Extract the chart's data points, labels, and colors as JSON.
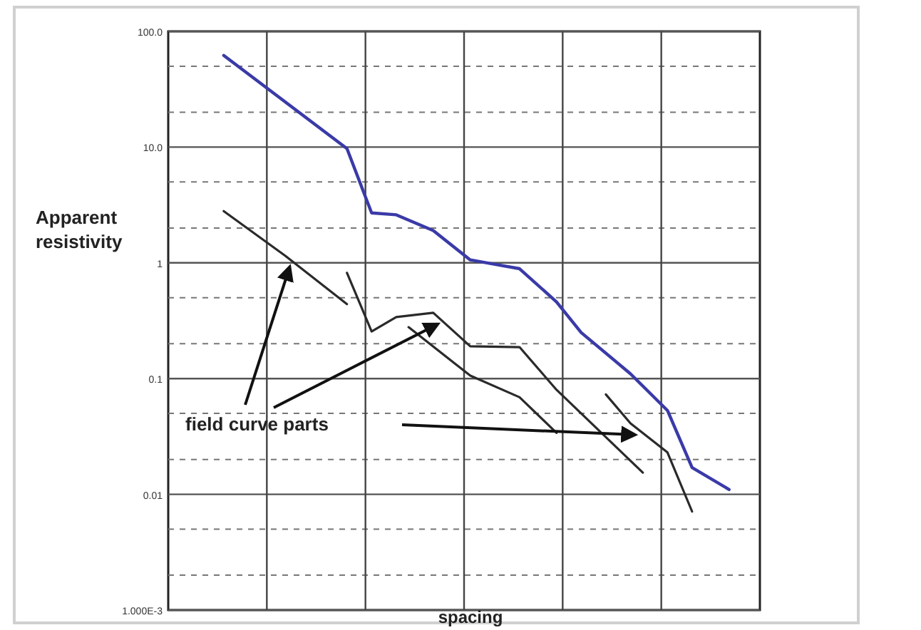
{
  "chart_data": {
    "type": "line",
    "xlabel": "spacing",
    "ylabel": "Apparent resistivity",
    "log": "y",
    "grid": true,
    "marker": "none",
    "line_style": "solid",
    "tick_labels": "y",
    "categories": [
      null,
      null,
      null,
      null,
      null,
      null,
      null,
      null,
      null,
      null,
      null,
      null,
      null,
      null,
      null,
      null,
      null,
      null,
      null,
      null,
      null,
      null,
      null,
      null,
      null,
      null,
      null,
      null,
      null,
      null,
      null,
      null,
      null,
      null,
      null,
      null,
      null,
      null,
      null,
      null,
      null,
      null,
      null,
      null,
      null,
      null,
      null,
      null
    ],
    "ylim": [
      0.001,
      100
    ],
    "yticks": [
      {
        "value": 100,
        "label": "100.0"
      },
      {
        "value": 10,
        "label": "10.0"
      },
      1,
      0.1,
      0.01,
      {
        "value": 0.001,
        "label": "1.000E-3"
      }
    ],
    "annotations": [
      "field curve parts"
    ],
    "series": [
      {
        "color": "#3a3aa8",
        "values": [
          null,
          null,
          null,
          null,
          62,
          null,
          null,
          null,
          null,
          null,
          null,
          null,
          null,
          null,
          9.7,
          null,
          2.7,
          null,
          2.6,
          null,
          null,
          1.9,
          null,
          null,
          1.06,
          null,
          0.97,
          null,
          0.89,
          null,
          null,
          0.46,
          null,
          0.25,
          null,
          null,
          null,
          0.11,
          null,
          null,
          0.053,
          null,
          0.017,
          null,
          null,
          0.011,
          null,
          null
        ]
      },
      {
        "color": "#2a2a2a",
        "values": [
          null,
          null,
          null,
          null,
          2.8,
          null,
          null,
          null,
          null,
          1.15,
          null,
          null,
          null,
          null,
          0.44,
          null,
          null,
          null,
          null,
          null,
          null,
          null,
          null,
          null,
          null,
          null,
          null,
          null,
          null,
          null,
          null,
          null,
          null,
          null,
          null,
          null,
          null,
          null,
          null,
          null,
          null,
          null,
          null,
          null,
          null,
          null,
          null,
          null
        ]
      },
      {
        "color": "#2a2a2a",
        "values": [
          null,
          null,
          null,
          null,
          null,
          null,
          null,
          null,
          null,
          null,
          null,
          null,
          null,
          null,
          0.82,
          null,
          0.255,
          null,
          0.34,
          null,
          null,
          0.37,
          null,
          null,
          0.19,
          null,
          null,
          null,
          0.187,
          null,
          null,
          0.08,
          null,
          null,
          null,
          null,
          null,
          null,
          0.0154,
          null,
          null,
          null,
          null,
          null,
          null,
          null,
          null,
          null
        ]
      },
      {
        "color": "#2a2a2a",
        "values": [
          null,
          null,
          null,
          null,
          null,
          null,
          null,
          null,
          null,
          null,
          null,
          null,
          null,
          null,
          null,
          null,
          null,
          null,
          null,
          0.278,
          null,
          null,
          null,
          null,
          0.106,
          null,
          null,
          null,
          0.069,
          null,
          null,
          0.034,
          null,
          null,
          null,
          null,
          null,
          null,
          null,
          null,
          null,
          null,
          null,
          null,
          null,
          null,
          null,
          null
        ]
      },
      {
        "color": "#2a2a2a",
        "values": [
          null,
          null,
          null,
          null,
          null,
          null,
          null,
          null,
          null,
          null,
          null,
          null,
          null,
          null,
          null,
          null,
          null,
          null,
          null,
          null,
          null,
          null,
          null,
          null,
          null,
          null,
          null,
          null,
          null,
          null,
          null,
          null,
          null,
          null,
          null,
          0.073,
          null,
          0.041,
          null,
          null,
          0.023,
          null,
          0.0071,
          null,
          null,
          null,
          null,
          null
        ]
      }
    ]
  }
}
